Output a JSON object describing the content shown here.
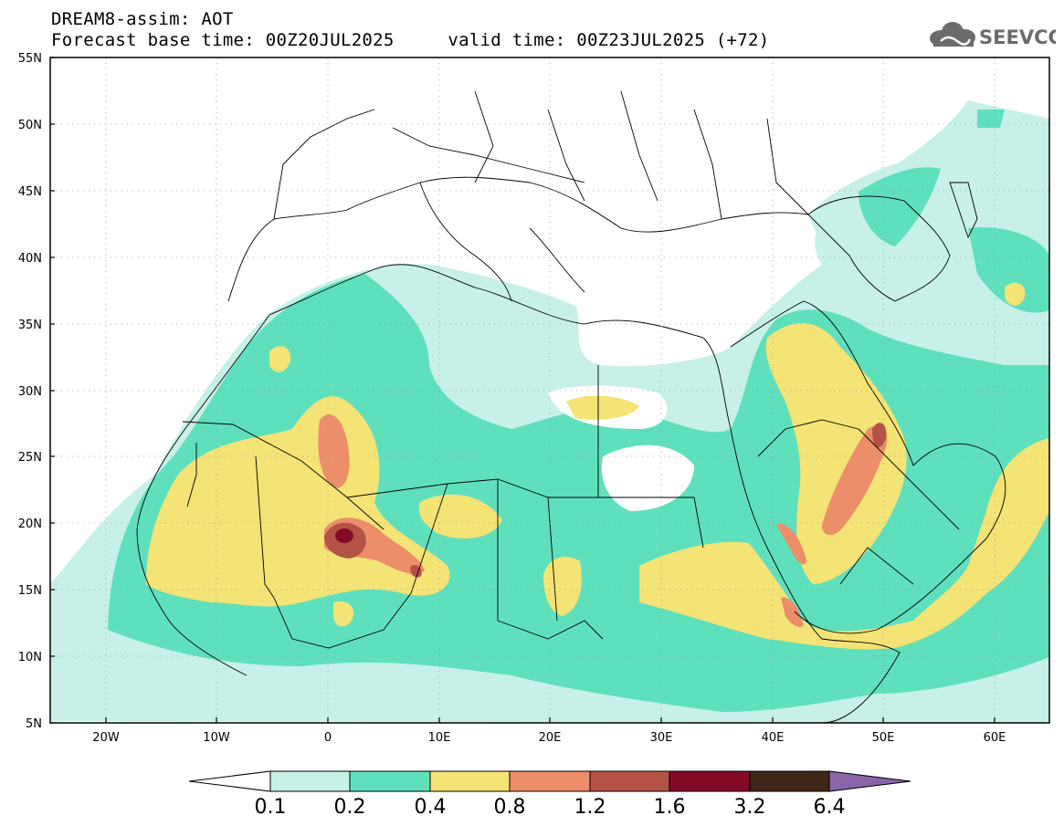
{
  "header": {
    "title_line1": "DREAM8-assim: AOT",
    "title_line2": "Forecast base time: 00Z20JUL2025     valid time: 00Z23JUL2025 (+72)"
  },
  "logo": {
    "text": "SEEVCCC",
    "icon": "cloud-icon",
    "color": "#6b6b6b"
  },
  "axes": {
    "lat_labels": [
      "55N",
      "50N",
      "45N",
      "40N",
      "35N",
      "30N",
      "25N",
      "20N",
      "15N",
      "10N",
      "5N"
    ],
    "lon_labels": [
      "20W",
      "10W",
      "0",
      "10E",
      "20E",
      "30E",
      "40E",
      "50E",
      "60E"
    ]
  },
  "colorbar": {
    "levels": [
      "0.1",
      "0.2",
      "0.4",
      "0.8",
      "1.2",
      "1.6",
      "3.2",
      "6.4"
    ],
    "colors": [
      "#c6f0e8",
      "#5fe0bd",
      "#f4e375",
      "#eb8e69",
      "#b45245",
      "#840a2a",
      "#3f2618",
      "#8a63a8"
    ]
  },
  "map_colors": {
    "c1": "#c6f0e8",
    "c2": "#5fe0bd",
    "c3": "#f4e375",
    "c4": "#eb8e69",
    "c5": "#b45245",
    "c6": "#840a2a"
  }
}
